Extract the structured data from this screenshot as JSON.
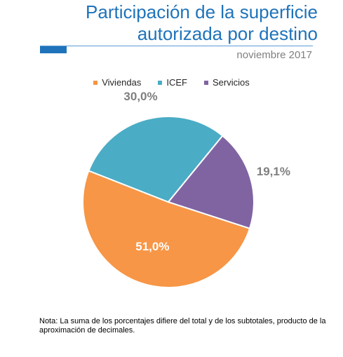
{
  "header": {
    "title_line1": "Participación de la superficie",
    "title_line2": "autorizada por destino",
    "date": "noviembre 2017"
  },
  "colors": {
    "title": "#1f73ba",
    "viviendas": "#f79646",
    "icef": "#4bacc6",
    "servicios": "#8064a2"
  },
  "chart_data": {
    "type": "pie",
    "title": "Participación de la superficie autorizada por destino",
    "subtitle": "noviembre 2017",
    "legend_position": "top",
    "slices": [
      {
        "name": "Viviendas",
        "value": 51.0,
        "label": "51,0%",
        "color": "#f79646"
      },
      {
        "name": "ICEF",
        "value": 30.0,
        "label": "30,0%",
        "color": "#4bacc6"
      },
      {
        "name": "Servicios",
        "value": 19.1,
        "label": "19,1%",
        "color": "#8064a2"
      }
    ]
  },
  "note": {
    "text": "Nota: La suma de los porcentajes difiere del total y de los subtotales, producto de la aproximación de decimales."
  }
}
